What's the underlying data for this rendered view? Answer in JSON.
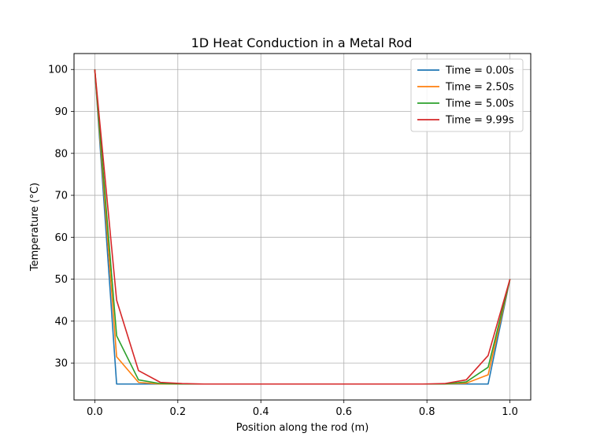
{
  "chart_data": {
    "type": "line",
    "title": "1D Heat Conduction in a Metal Rod",
    "xlabel": "Position along the rod (m)",
    "ylabel": "Temperature (°C)",
    "xlim": [
      -0.05,
      1.05
    ],
    "ylim": [
      21.2,
      103.8
    ],
    "xticks": [
      0.0,
      0.2,
      0.4,
      0.6,
      0.8,
      1.0
    ],
    "xtick_labels": [
      "0.0",
      "0.2",
      "0.4",
      "0.6",
      "0.8",
      "1.0"
    ],
    "yticks": [
      30,
      40,
      50,
      60,
      70,
      80,
      90,
      100
    ],
    "ytick_labels": [
      "30",
      "40",
      "50",
      "60",
      "70",
      "80",
      "90",
      "100"
    ],
    "grid": true,
    "legend_position": "top-right",
    "x": [
      0.0,
      0.0526,
      0.1053,
      0.1579,
      0.2105,
      0.2632,
      0.3158,
      0.3684,
      0.4211,
      0.4737,
      0.5263,
      0.5789,
      0.6316,
      0.6842,
      0.7368,
      0.7895,
      0.8421,
      0.8947,
      0.9474,
      1.0
    ],
    "series": [
      {
        "name": "Time = 0.00s",
        "color": "#1f77b4",
        "values": [
          100,
          25,
          25,
          25,
          25,
          25,
          25,
          25,
          25,
          25,
          25,
          25,
          25,
          25,
          25,
          25,
          25,
          25,
          25,
          50
        ]
      },
      {
        "name": "Time = 2.50s",
        "color": "#ff7f0e",
        "values": [
          100,
          31.5,
          25.4,
          25.0,
          25,
          25,
          25,
          25,
          25,
          25,
          25,
          25,
          25,
          25,
          25,
          25,
          25,
          25.2,
          27.2,
          50
        ]
      },
      {
        "name": "Time = 5.00s",
        "color": "#2ca02c",
        "values": [
          100,
          36.5,
          26.0,
          25.1,
          25,
          25,
          25,
          25,
          25,
          25,
          25,
          25,
          25,
          25,
          25,
          25,
          25,
          25.5,
          29.0,
          50
        ]
      },
      {
        "name": "Time = 9.99s",
        "color": "#d62728",
        "values": [
          100,
          45.0,
          28.2,
          25.4,
          25.1,
          25,
          25,
          25,
          25,
          25,
          25,
          25,
          25,
          25,
          25,
          25,
          25.1,
          26.0,
          31.8,
          50
        ]
      }
    ]
  }
}
